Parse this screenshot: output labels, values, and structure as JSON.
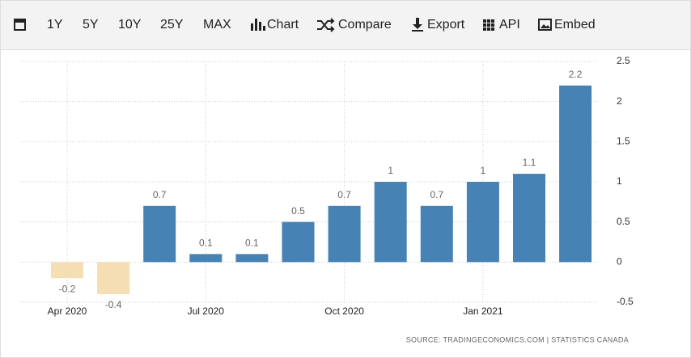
{
  "toolbar": [
    "1Y",
    "5Y",
    "10Y",
    "25Y",
    "MAX",
    "Chart",
    "Compare",
    "Export",
    "API",
    "Embed"
  ],
  "chart_data": {
    "type": "bar",
    "categories": [
      "Apr 2020",
      null,
      null,
      "Jul 2020",
      null,
      null,
      "Oct 2020",
      null,
      null,
      "Jan 2021",
      null,
      null
    ],
    "values": [
      -0.2,
      -0.4,
      0.7,
      0.1,
      0.1,
      0.5,
      0.7,
      1,
      0.7,
      1,
      1.1,
      2.2
    ],
    "color": "#4682b4",
    "negative_color": "#f5deb3",
    "ylim": [
      -0.5,
      2.5
    ],
    "yticks": [
      -0.5,
      0,
      0.5,
      1,
      1.5,
      2,
      2.5
    ],
    "grid": true,
    "source": "SOURCE: TRADINGECONOMICS.COM | STATISTICS CANADA"
  }
}
